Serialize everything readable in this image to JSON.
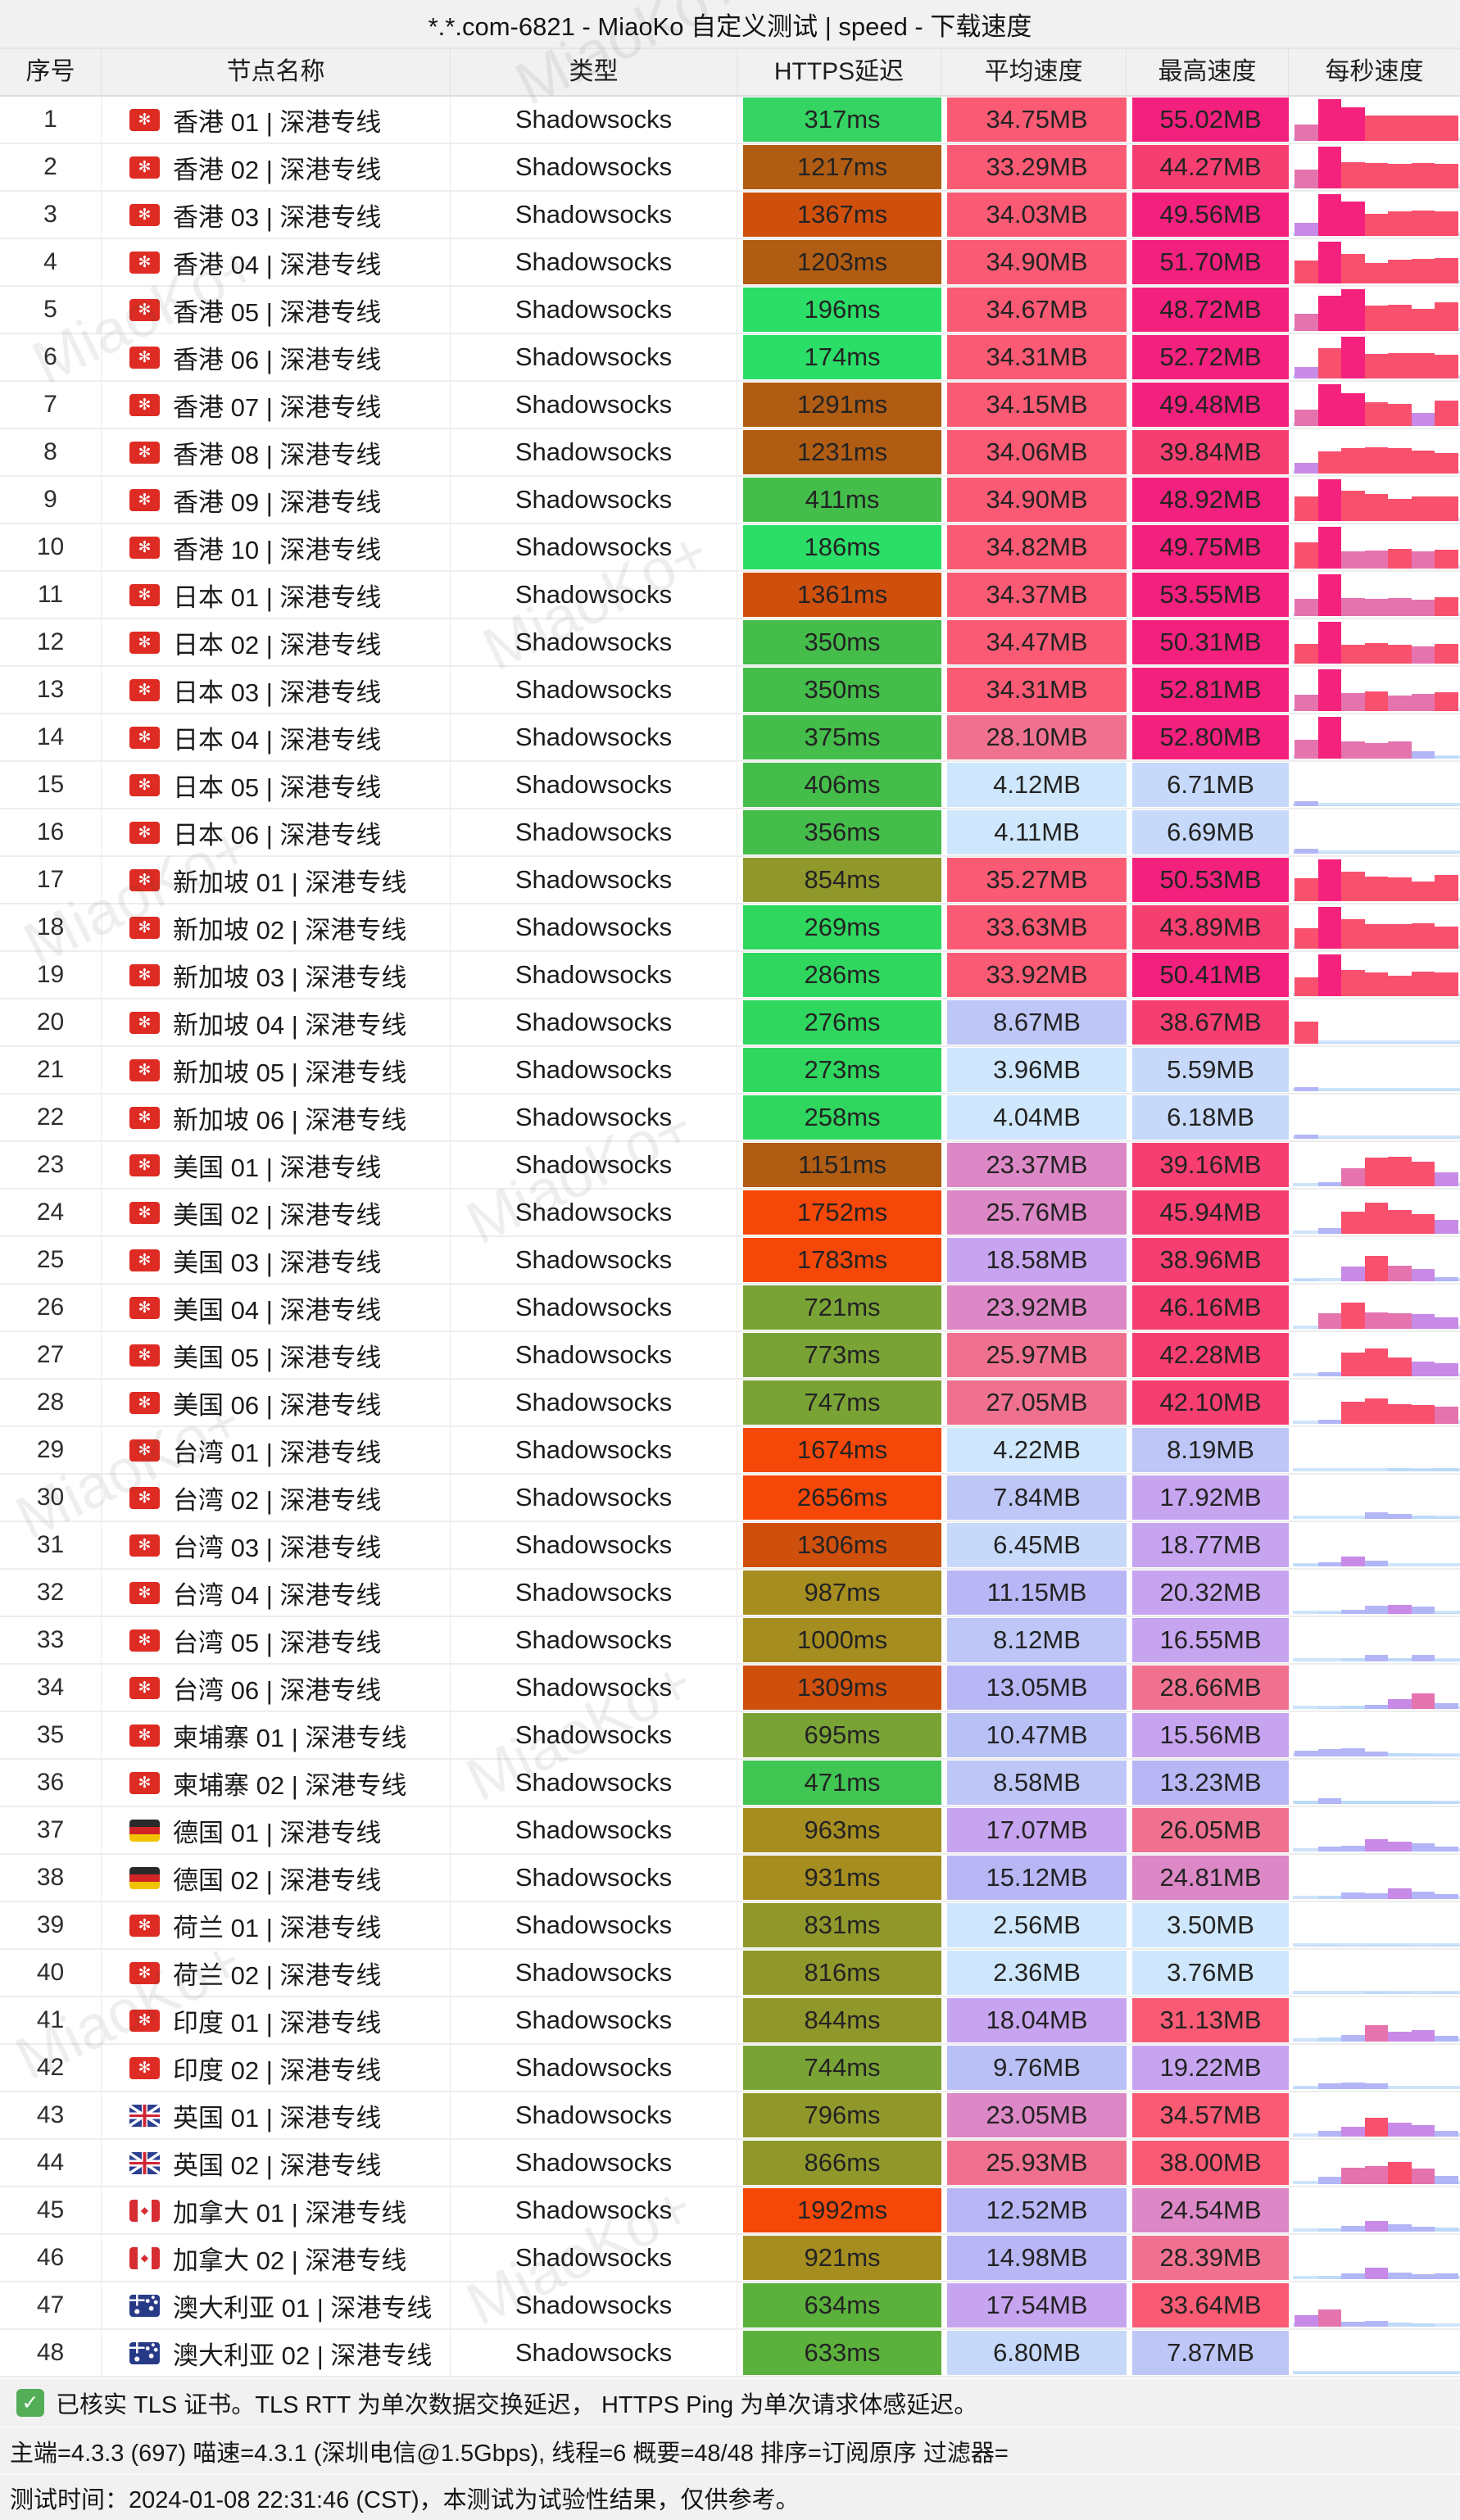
{
  "title": "*.*.com-6821 - MiaoKo 自定义测试 | speed - 下载速度",
  "watermark": "MiaoKo+",
  "columns": [
    "序号",
    "节点名称",
    "类型",
    "HTTPS延迟",
    "平均速度",
    "最高速度",
    "每秒速度"
  ],
  "footer": {
    "line1": "已核实 TLS 证书。TLS RTT 为单次数据交换延迟， HTTPS Ping 为单次请求体感延迟。",
    "line2": "主端=4.3.3 (697) 喵速=4.3.1 (深圳电信@1.5Gbps), 线程=6 概要=48/48 排序=订阅原序 过滤器=",
    "line3": "测试时间：2024-01-08 22:31:46 (CST)，本测试为试验性结果，仅供参考。",
    "check_icon": "✓"
  },
  "colors": {
    "latency_scale": [
      [
        200,
        "#2ade67"
      ],
      [
        300,
        "#2fd75f"
      ],
      [
        330,
        "#35d463"
      ],
      [
        430,
        "#44bd4a"
      ],
      [
        500,
        "#41c553"
      ],
      [
        650,
        "#5bb13c"
      ],
      [
        790,
        "#7aa336"
      ],
      [
        880,
        "#90982b"
      ],
      [
        1010,
        "#a68d1f"
      ],
      [
        1300,
        "#b05c13"
      ],
      [
        1420,
        "#cf4f0d"
      ],
      [
        99999,
        "#f54708"
      ]
    ],
    "speed_scale": [
      [
        5.5,
        "#cfe7fc"
      ],
      [
        7.8,
        "#c7d9fa"
      ],
      [
        9,
        "#bdc6f6"
      ],
      [
        11,
        "#b9c0f6"
      ],
      [
        15.5,
        "#b8b6f5"
      ],
      [
        23,
        "#c7a4f0"
      ],
      [
        25.9,
        "#dc87c6"
      ],
      [
        30,
        "#f0718f"
      ],
      [
        38,
        "#fa5a73"
      ],
      [
        48,
        "#f73e71"
      ],
      [
        99999,
        "#f3207d"
      ]
    ],
    "bar_scale": [
      [
        9,
        "#bdd9f8"
      ],
      [
        21,
        "#b2b6f6"
      ],
      [
        37,
        "#c78ae6"
      ],
      [
        45,
        "#e573ae"
      ],
      [
        74,
        "#f9506e"
      ],
      [
        1000,
        "#f4217d"
      ]
    ],
    "spark_baseline": "#cfe3fa"
  },
  "rows": [
    {
      "no": 1,
      "flag": "hk",
      "name": "香港 01 | 深港专线",
      "type": "Shadowsocks",
      "latency_ms": 317,
      "avg_mb": 34.75,
      "max_mb": 55.02,
      "bars": [
        40,
        100,
        80,
        60,
        60,
        60,
        60
      ]
    },
    {
      "no": 2,
      "flag": "hk",
      "name": "香港 02 | 深港专线",
      "type": "Shadowsocks",
      "latency_ms": 1217,
      "avg_mb": 33.29,
      "max_mb": 44.27,
      "bars": [
        45,
        100,
        62,
        60,
        58,
        60,
        58
      ]
    },
    {
      "no": 3,
      "flag": "hk",
      "name": "香港 03 | 深港专线",
      "type": "Shadowsocks",
      "latency_ms": 1367,
      "avg_mb": 34.03,
      "max_mb": 49.56,
      "bars": [
        32,
        100,
        82,
        52,
        58,
        60,
        58
      ]
    },
    {
      "no": 4,
      "flag": "hk",
      "name": "香港 04 | 深港专线",
      "type": "Shadowsocks",
      "latency_ms": 1203,
      "avg_mb": 34.9,
      "max_mb": 51.7,
      "bars": [
        55,
        100,
        70,
        50,
        56,
        58,
        60
      ]
    },
    {
      "no": 5,
      "flag": "hk",
      "name": "香港 05 | 深港专线",
      "type": "Shadowsocks",
      "latency_ms": 196,
      "avg_mb": 34.67,
      "max_mb": 48.72,
      "bars": [
        42,
        85,
        100,
        60,
        62,
        52,
        68
      ]
    },
    {
      "no": 6,
      "flag": "hk",
      "name": "香港 06 | 深港专线",
      "type": "Shadowsocks",
      "latency_ms": 174,
      "avg_mb": 34.31,
      "max_mb": 52.72,
      "bars": [
        28,
        72,
        100,
        58,
        60,
        60,
        56
      ]
    },
    {
      "no": 7,
      "flag": "hk",
      "name": "香港 07 | 深港专线",
      "type": "Shadowsocks",
      "latency_ms": 1291,
      "avg_mb": 34.15,
      "max_mb": 49.48,
      "bars": [
        40,
        100,
        78,
        56,
        52,
        32,
        60
      ]
    },
    {
      "no": 8,
      "flag": "hk",
      "name": "香港 08 | 深港专线",
      "type": "Shadowsocks",
      "latency_ms": 1231,
      "avg_mb": 34.06,
      "max_mb": 39.84,
      "bars": [
        25,
        52,
        60,
        62,
        60,
        55,
        50
      ]
    },
    {
      "no": 9,
      "flag": "hk",
      "name": "香港 09 | 深港专线",
      "type": "Shadowsocks",
      "latency_ms": 411,
      "avg_mb": 34.9,
      "max_mb": 48.92,
      "bars": [
        58,
        100,
        72,
        65,
        52,
        58,
        58
      ]
    },
    {
      "no": 10,
      "flag": "hk",
      "name": "香港 10 | 深港专线",
      "type": "Shadowsocks",
      "latency_ms": 186,
      "avg_mb": 34.82,
      "max_mb": 49.75,
      "bars": [
        62,
        100,
        42,
        44,
        48,
        42,
        46
      ]
    },
    {
      "no": 11,
      "flag": "hk",
      "name": "日本 01 | 深港专线",
      "type": "Shadowsocks",
      "latency_ms": 1361,
      "avg_mb": 34.37,
      "max_mb": 53.55,
      "bars": [
        42,
        100,
        44,
        42,
        44,
        40,
        46
      ]
    },
    {
      "no": 12,
      "flag": "hk",
      "name": "日本 02 | 深港专线",
      "type": "Shadowsocks",
      "latency_ms": 350,
      "avg_mb": 34.47,
      "max_mb": 50.31,
      "bars": [
        48,
        100,
        46,
        50,
        46,
        42,
        48
      ]
    },
    {
      "no": 13,
      "flag": "hk",
      "name": "日本 03 | 深港专线",
      "type": "Shadowsocks",
      "latency_ms": 350,
      "avg_mb": 34.31,
      "max_mb": 52.81,
      "bars": [
        40,
        100,
        44,
        48,
        38,
        42,
        46
      ]
    },
    {
      "no": 14,
      "flag": "hk",
      "name": "日本 04 | 深港专线",
      "type": "Shadowsocks",
      "latency_ms": 375,
      "avg_mb": 28.1,
      "max_mb": 52.8,
      "bars": [
        45,
        100,
        42,
        38,
        42,
        18,
        5
      ]
    },
    {
      "no": 15,
      "flag": "hk",
      "name": "日本 05 | 深港专线",
      "type": "Shadowsocks",
      "latency_ms": 406,
      "avg_mb": 4.12,
      "max_mb": 6.71,
      "bars": [
        12,
        2,
        2,
        2,
        2,
        2,
        2
      ]
    },
    {
      "no": 16,
      "flag": "hk",
      "name": "日本 06 | 深港专线",
      "type": "Shadowsocks",
      "latency_ms": 356,
      "avg_mb": 4.11,
      "max_mb": 6.69,
      "bars": [
        12,
        2,
        2,
        2,
        2,
        2,
        2
      ]
    },
    {
      "no": 17,
      "flag": "hk",
      "name": "新加坡 01 | 深港专线",
      "type": "Shadowsocks",
      "latency_ms": 854,
      "avg_mb": 35.27,
      "max_mb": 50.53,
      "bars": [
        55,
        100,
        70,
        58,
        56,
        48,
        62
      ]
    },
    {
      "no": 18,
      "flag": "hk",
      "name": "新加坡 02 | 深港专线",
      "type": "Shadowsocks",
      "latency_ms": 269,
      "avg_mb": 33.63,
      "max_mb": 43.89,
      "bars": [
        50,
        100,
        70,
        58,
        58,
        60,
        52
      ]
    },
    {
      "no": 19,
      "flag": "hk",
      "name": "新加坡 03 | 深港专线",
      "type": "Shadowsocks",
      "latency_ms": 286,
      "avg_mb": 33.92,
      "max_mb": 50.41,
      "bars": [
        46,
        100,
        62,
        56,
        50,
        58,
        56
      ]
    },
    {
      "no": 20,
      "flag": "hk",
      "name": "新加坡 04 | 深港专线",
      "type": "Shadowsocks",
      "latency_ms": 276,
      "avg_mb": 8.67,
      "max_mb": 38.67,
      "bars": [
        52,
        2,
        2,
        2,
        2,
        2,
        2
      ]
    },
    {
      "no": 21,
      "flag": "hk",
      "name": "新加坡 05 | 深港专线",
      "type": "Shadowsocks",
      "latency_ms": 273,
      "avg_mb": 3.96,
      "max_mb": 5.59,
      "bars": [
        10,
        2,
        2,
        2,
        2,
        2,
        2
      ]
    },
    {
      "no": 22,
      "flag": "hk",
      "name": "新加坡 06 | 深港专线",
      "type": "Shadowsocks",
      "latency_ms": 258,
      "avg_mb": 4.04,
      "max_mb": 6.18,
      "bars": [
        10,
        2,
        2,
        2,
        2,
        2,
        2
      ]
    },
    {
      "no": 23,
      "flag": "hk",
      "name": "美国 01 | 深港专线",
      "type": "Shadowsocks",
      "latency_ms": 1151,
      "avg_mb": 23.37,
      "max_mb": 39.16,
      "bars": [
        0,
        10,
        44,
        68,
        70,
        58,
        34
      ]
    },
    {
      "no": 24,
      "flag": "hk",
      "name": "美国 02 | 深港专线",
      "type": "Shadowsocks",
      "latency_ms": 1752,
      "avg_mb": 25.76,
      "max_mb": 45.94,
      "bars": [
        0,
        14,
        52,
        74,
        56,
        48,
        34
      ]
    },
    {
      "no": 25,
      "flag": "hk",
      "name": "美国 03 | 深港专线",
      "type": "Shadowsocks",
      "latency_ms": 1783,
      "avg_mb": 18.58,
      "max_mb": 38.96,
      "bars": [
        6,
        0,
        36,
        60,
        38,
        30,
        10
      ]
    },
    {
      "no": 26,
      "flag": "hk",
      "name": "美国 04 | 深港专线",
      "type": "Shadowsocks",
      "latency_ms": 721,
      "avg_mb": 23.92,
      "max_mb": 46.16,
      "bars": [
        0,
        38,
        62,
        40,
        38,
        36,
        28
      ]
    },
    {
      "no": 27,
      "flag": "hk",
      "name": "美国 05 | 深港专线",
      "type": "Shadowsocks",
      "latency_ms": 773,
      "avg_mb": 25.97,
      "max_mb": 42.28,
      "bars": [
        0,
        10,
        56,
        66,
        46,
        36,
        32
      ]
    },
    {
      "no": 28,
      "flag": "hk",
      "name": "美国 06 | 深港专线",
      "type": "Shadowsocks",
      "latency_ms": 747,
      "avg_mb": 27.05,
      "max_mb": 42.1,
      "bars": [
        0,
        10,
        52,
        60,
        48,
        46,
        42
      ]
    },
    {
      "no": 29,
      "flag": "hk",
      "name": "台湾 01 | 深港专线",
      "type": "Shadowsocks",
      "latency_ms": 1674,
      "avg_mb": 4.22,
      "max_mb": 8.19,
      "bars": [
        0,
        0,
        0,
        0,
        8,
        5,
        7
      ]
    },
    {
      "no": 30,
      "flag": "hk",
      "name": "台湾 02 | 深港专线",
      "type": "Shadowsocks",
      "latency_ms": 2656,
      "avg_mb": 7.84,
      "max_mb": 17.92,
      "bars": [
        0,
        0,
        0,
        16,
        12,
        8,
        4
      ]
    },
    {
      "no": 31,
      "flag": "hk",
      "name": "台湾 03 | 深港专线",
      "type": "Shadowsocks",
      "latency_ms": 1306,
      "avg_mb": 6.45,
      "max_mb": 18.77,
      "bars": [
        6,
        10,
        24,
        14,
        0,
        0,
        0
      ]
    },
    {
      "no": 32,
      "flag": "hk",
      "name": "台湾 04 | 深港专线",
      "type": "Shadowsocks",
      "latency_ms": 987,
      "avg_mb": 11.15,
      "max_mb": 20.32,
      "bars": [
        0,
        4,
        10,
        20,
        22,
        18,
        2
      ]
    },
    {
      "no": 33,
      "flag": "hk",
      "name": "台湾 05 | 深港专线",
      "type": "Shadowsocks",
      "latency_ms": 1000,
      "avg_mb": 8.12,
      "max_mb": 16.55,
      "bars": [
        0,
        0,
        7,
        16,
        8,
        16,
        4
      ]
    },
    {
      "no": 34,
      "flag": "hk",
      "name": "台湾 06 | 深港专线",
      "type": "Shadowsocks",
      "latency_ms": 1309,
      "avg_mb": 13.05,
      "max_mb": 28.66,
      "bars": [
        0,
        4,
        8,
        10,
        24,
        38,
        14
      ]
    },
    {
      "no": 35,
      "flag": "hk",
      "name": "柬埔寨 01 | 深港专线",
      "type": "Shadowsocks",
      "latency_ms": 695,
      "avg_mb": 10.47,
      "max_mb": 15.56,
      "bars": [
        14,
        17,
        19,
        11,
        7,
        5,
        4
      ]
    },
    {
      "no": 36,
      "flag": "hk",
      "name": "柬埔寨 02 | 深港专线",
      "type": "Shadowsocks",
      "latency_ms": 471,
      "avg_mb": 8.58,
      "max_mb": 13.23,
      "bars": [
        7,
        13,
        7,
        7,
        7,
        7,
        5
      ]
    },
    {
      "no": 37,
      "flag": "de",
      "name": "德国 01 | 深港专线",
      "type": "Shadowsocks",
      "latency_ms": 963,
      "avg_mb": 17.07,
      "max_mb": 26.05,
      "bars": [
        0,
        11,
        14,
        30,
        24,
        20,
        11
      ]
    },
    {
      "no": 38,
      "flag": "de",
      "name": "德国 02 | 深港专线",
      "type": "Shadowsocks",
      "latency_ms": 931,
      "avg_mb": 15.12,
      "max_mb": 24.81,
      "bars": [
        0,
        7,
        16,
        14,
        26,
        18,
        11
      ]
    },
    {
      "no": 39,
      "flag": "hk",
      "name": "荷兰 01 | 深港专线",
      "type": "Shadowsocks",
      "latency_ms": 831,
      "avg_mb": 2.56,
      "max_mb": 3.5,
      "bars": [
        2,
        3,
        2,
        4,
        3,
        2,
        3
      ]
    },
    {
      "no": 40,
      "flag": "hk",
      "name": "荷兰 02 | 深港专线",
      "type": "Shadowsocks",
      "latency_ms": 816,
      "avg_mb": 2.36,
      "max_mb": 3.76,
      "bars": [
        2,
        2,
        2,
        5,
        3,
        2,
        3
      ]
    },
    {
      "no": 41,
      "flag": "hk",
      "name": "印度 01 | 深港专线",
      "type": "Shadowsocks",
      "latency_ms": 844,
      "avg_mb": 18.04,
      "max_mb": 31.13,
      "bars": [
        0,
        9,
        16,
        40,
        24,
        28,
        14
      ]
    },
    {
      "no": 42,
      "flag": "hk",
      "name": "印度 02 | 深港专线",
      "type": "Shadowsocks",
      "latency_ms": 744,
      "avg_mb": 9.76,
      "max_mb": 19.22,
      "bars": [
        5,
        14,
        15,
        13,
        0,
        0,
        0
      ]
    },
    {
      "no": 43,
      "flag": "gb",
      "name": "英国 01 | 深港专线",
      "type": "Shadowsocks",
      "latency_ms": 796,
      "avg_mb": 23.05,
      "max_mb": 34.57,
      "bars": [
        0,
        14,
        24,
        46,
        33,
        28,
        14
      ]
    },
    {
      "no": 44,
      "flag": "gb",
      "name": "英国 02 | 深港专线",
      "type": "Shadowsocks",
      "latency_ms": 866,
      "avg_mb": 25.93,
      "max_mb": 38.0,
      "bars": [
        0,
        17,
        40,
        43,
        52,
        38,
        20
      ]
    },
    {
      "no": 45,
      "flag": "ca",
      "name": "加拿大 01 | 深港专线",
      "type": "Shadowsocks",
      "latency_ms": 1992,
      "avg_mb": 12.52,
      "max_mb": 24.54,
      "bars": [
        0,
        7,
        14,
        26,
        17,
        11,
        9
      ]
    },
    {
      "no": 46,
      "flag": "ca",
      "name": "加拿大 02 | 深港专线",
      "type": "Shadowsocks",
      "latency_ms": 921,
      "avg_mb": 14.98,
      "max_mb": 28.39,
      "bars": [
        0,
        7,
        13,
        28,
        15,
        11,
        13
      ]
    },
    {
      "no": 47,
      "flag": "au",
      "name": "澳大利亚 01 | 深港专线",
      "type": "Shadowsocks",
      "latency_ms": 634,
      "avg_mb": 17.54,
      "max_mb": 33.64,
      "bars": [
        28,
        42,
        11,
        13,
        9,
        7,
        0
      ]
    },
    {
      "no": 48,
      "flag": "au",
      "name": "澳大利亚 02 | 深港专线",
      "type": "Shadowsocks",
      "latency_ms": 633,
      "avg_mb": 6.8,
      "max_mb": 7.87,
      "bars": [
        3,
        4,
        3,
        3,
        3,
        3,
        3
      ]
    }
  ]
}
